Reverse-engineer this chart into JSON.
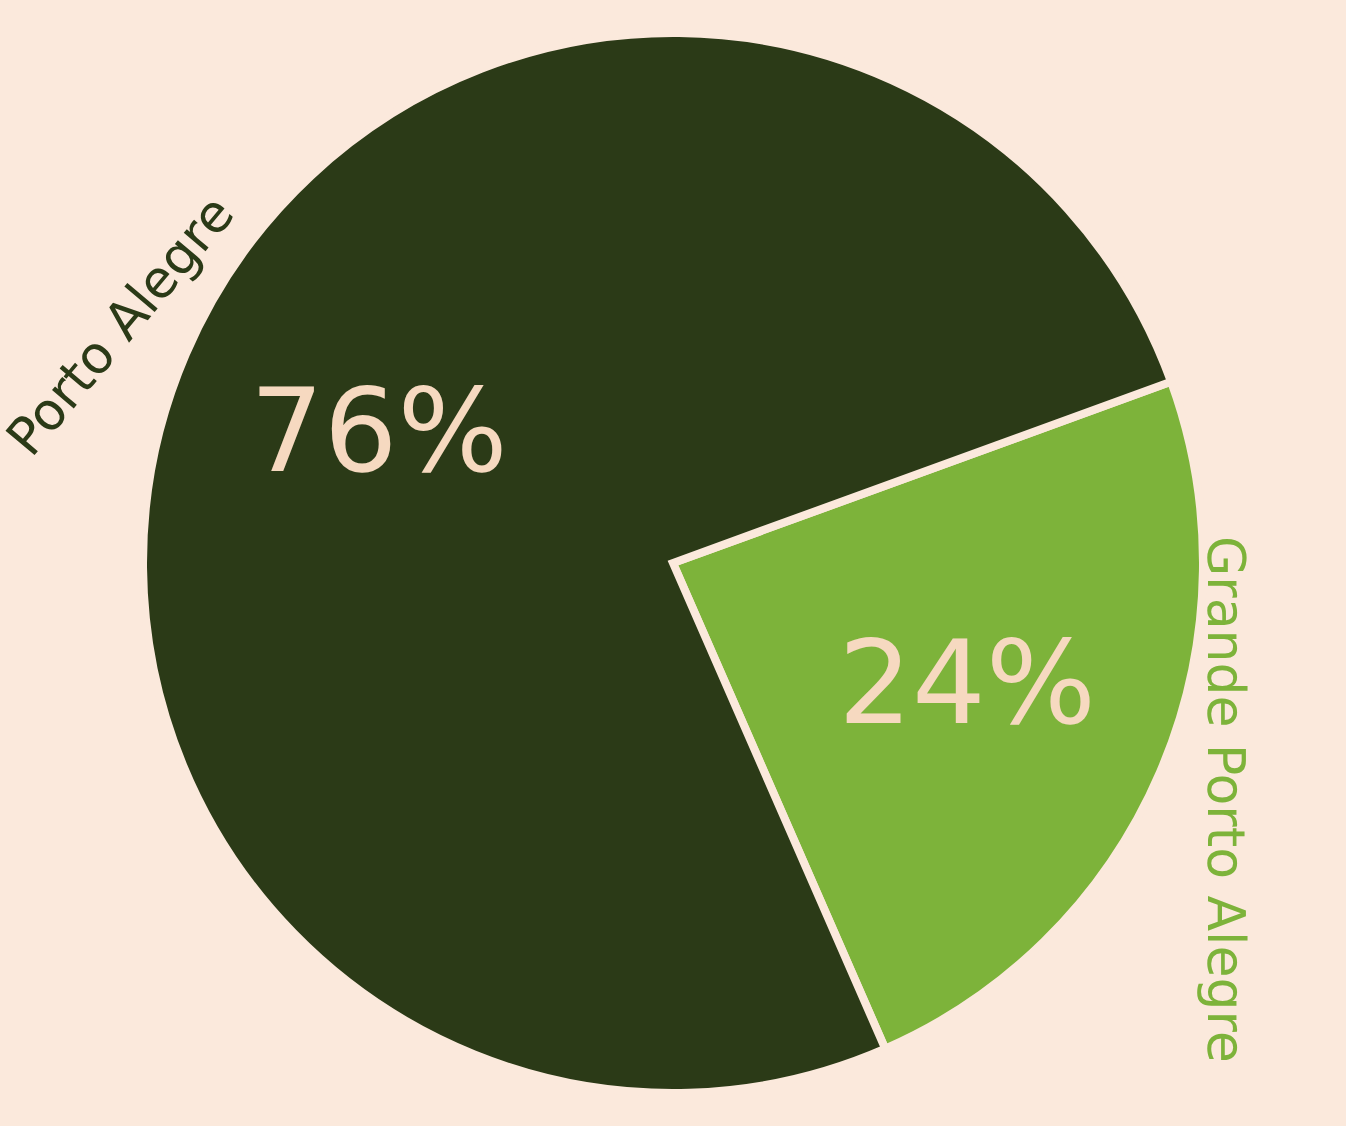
{
  "chart_data": {
    "type": "pie",
    "categories": [
      "Grande Porto Alegre",
      "Porto Alegre"
    ],
    "values": [
      24,
      76
    ],
    "colors": [
      "#7db33a",
      "#2b3a17"
    ],
    "value_labels": [
      "24%",
      "76%"
    ]
  }
}
